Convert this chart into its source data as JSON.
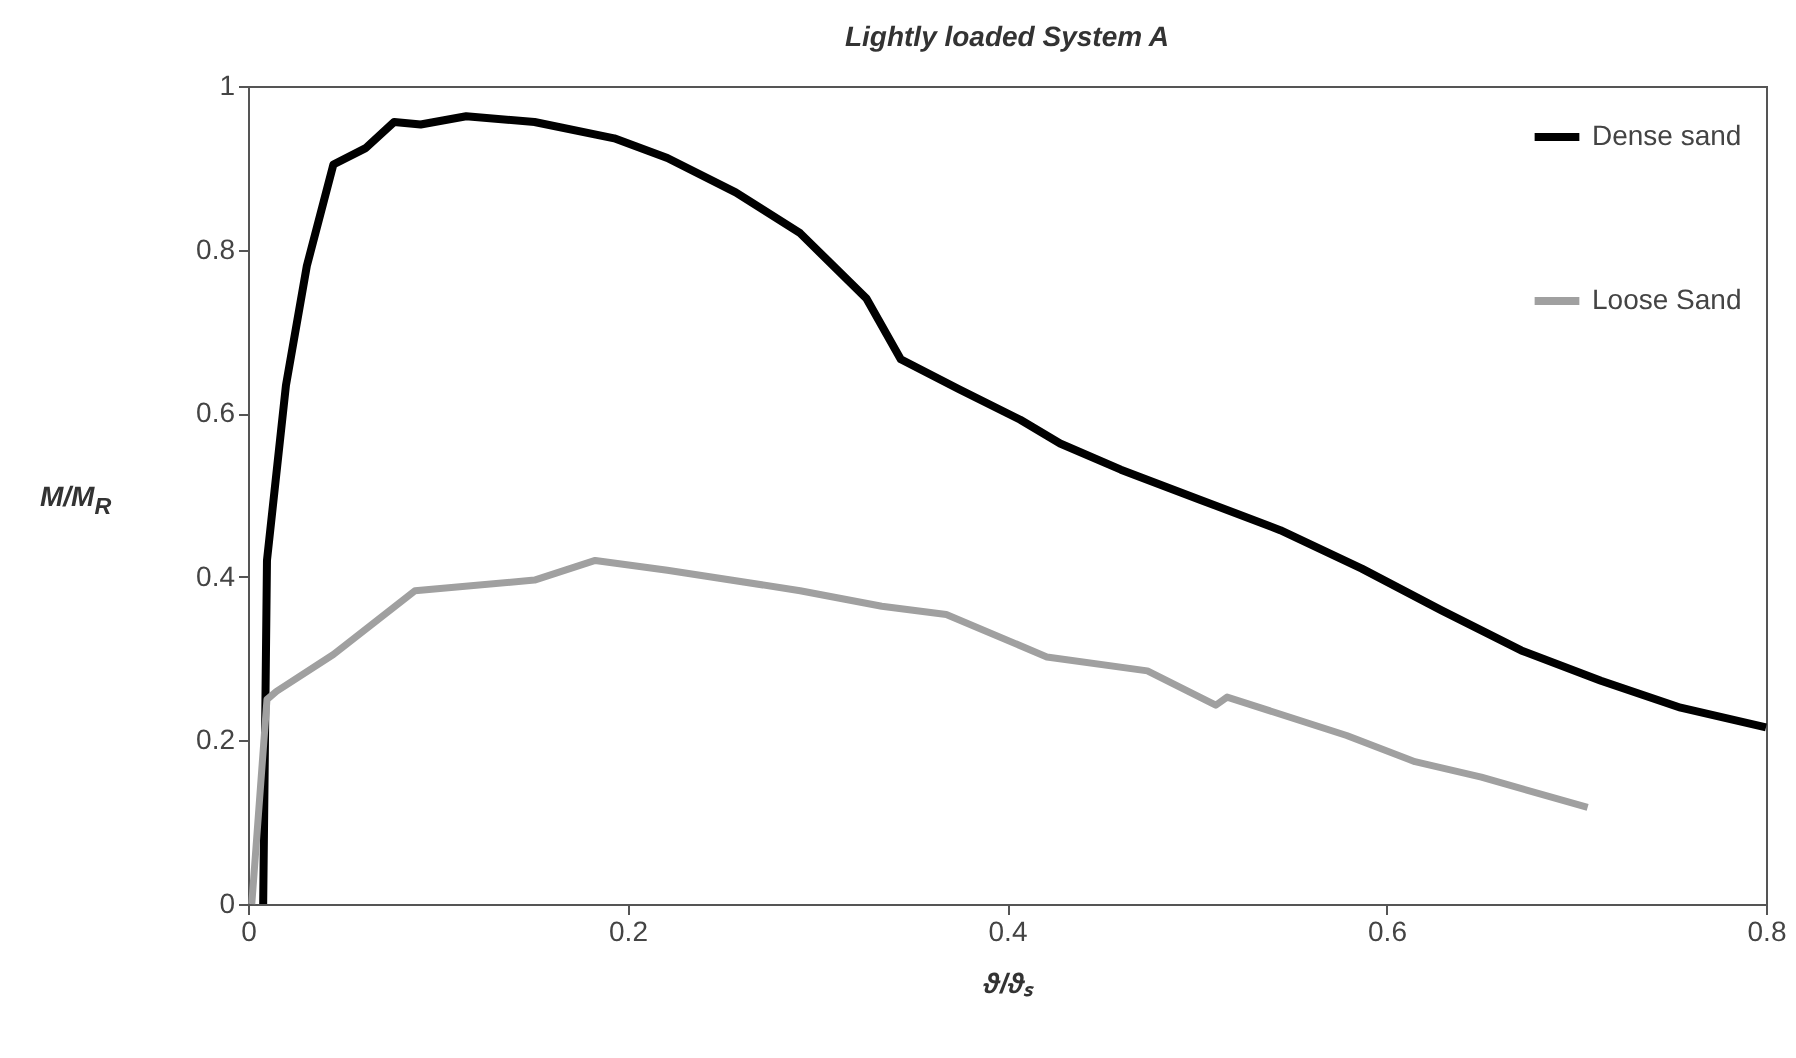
{
  "chart_data": {
    "type": "line",
    "title": "Lightly loaded System A",
    "xlabel": "ϑ/ϑₛ",
    "ylabel": "M/M$_{R}$",
    "xlim": [
      0,
      0.8
    ],
    "xticks": [
      0,
      0.2,
      0.4,
      0.6,
      0.8
    ],
    "ylim": [
      0,
      1
    ],
    "yticks": [
      0,
      0.2,
      0.4,
      0.6,
      0.8,
      1
    ],
    "grid": false,
    "legend": "top right",
    "line_style": "solid",
    "marker": "none",
    "series": [
      {
        "name": "Dense sand",
        "color": "#000000",
        "x": [
          0.008,
          0.01,
          0.02,
          0.031,
          0.045,
          0.062,
          0.077,
          0.091,
          0.115,
          0.151,
          0.193,
          0.221,
          0.257,
          0.291,
          0.326,
          0.344,
          0.375,
          0.407,
          0.428,
          0.46,
          0.502,
          0.544,
          0.587,
          0.629,
          0.671,
          0.713,
          0.755,
          0.8
        ],
        "values": [
          0,
          0.42,
          0.634,
          0.78,
          0.904,
          0.924,
          0.956,
          0.953,
          0.963,
          0.956,
          0.936,
          0.912,
          0.87,
          0.82,
          0.74,
          0.666,
          0.629,
          0.592,
          0.563,
          0.531,
          0.494,
          0.457,
          0.41,
          0.359,
          0.31,
          0.273,
          0.24,
          0.216
        ]
      },
      {
        "name": "Loose Sand",
        "color": "#a0a0a0",
        "x": [
          0.002,
          0.01,
          0.015,
          0.045,
          0.088,
          0.151,
          0.183,
          0.221,
          0.291,
          0.334,
          0.368,
          0.421,
          0.474,
          0.51,
          0.516,
          0.579,
          0.615,
          0.65,
          0.706
        ],
        "values": [
          0,
          0.25,
          0.26,
          0.305,
          0.383,
          0.396,
          0.42,
          0.408,
          0.383,
          0.364,
          0.354,
          0.302,
          0.285,
          0.243,
          0.253,
          0.206,
          0.174,
          0.155,
          0.118
        ]
      }
    ]
  }
}
